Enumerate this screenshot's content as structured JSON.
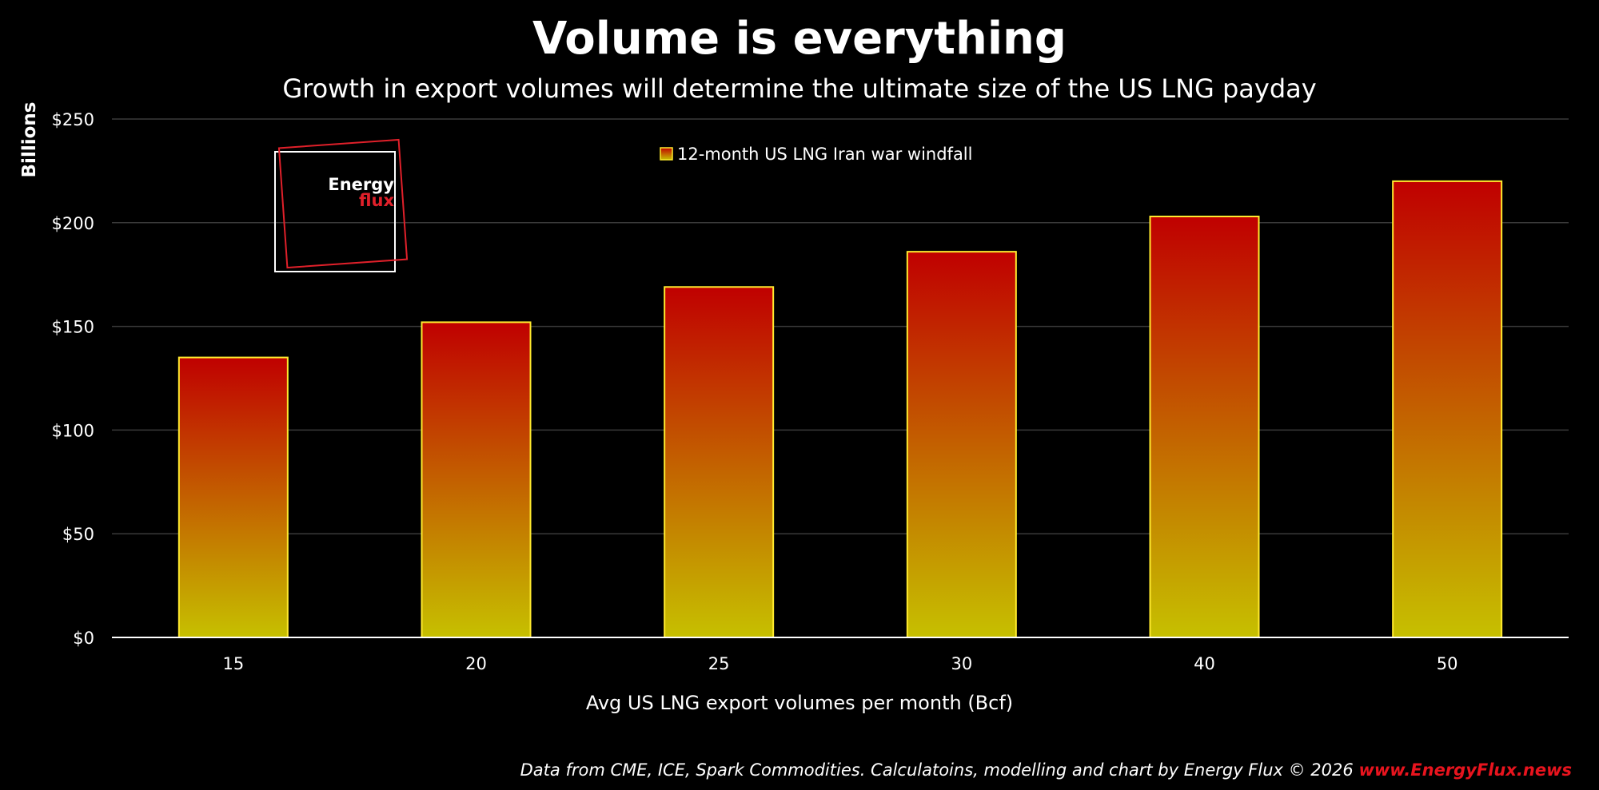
{
  "chart_data": {
    "type": "bar",
    "title": "Volume is everything",
    "subtitle": "Growth in export volumes will determine the ultimate size of the US LNG payday",
    "xlabel": "Avg US LNG export volumes per month (Bcf)",
    "ylabel": "Billions",
    "categories": [
      "15",
      "20",
      "25",
      "30",
      "40",
      "50"
    ],
    "series": [
      {
        "name": "12-month US LNG Iran war windfall",
        "values": [
          135,
          152,
          169,
          186,
          203,
          220
        ]
      }
    ],
    "ylim": [
      0,
      250
    ],
    "yticks": [
      0,
      50,
      100,
      150,
      200,
      250
    ],
    "ytick_labels": [
      "$0",
      "$50",
      "$100",
      "$150",
      "$200",
      "$250"
    ],
    "grid": true,
    "legend_position": "top-center",
    "colors": {
      "background": "#000000",
      "bar_top": "#c00000",
      "bar_bottom": "#c6c000",
      "bar_outline": "#ffea2e",
      "gridline": "#3a3a3a",
      "axis_line": "#ffffff",
      "logo_red": "#e0202a",
      "logo_white": "#ffffff",
      "source_link": "#e8141e"
    }
  },
  "logo": {
    "line1": "Energy",
    "line2": "flux"
  },
  "source": {
    "text": "Data from CME, ICE, Spark Commodities. Calculatoins, modelling and chart by Energy Flux © 2026 ",
    "link": "www.EnergyFlux.news"
  }
}
